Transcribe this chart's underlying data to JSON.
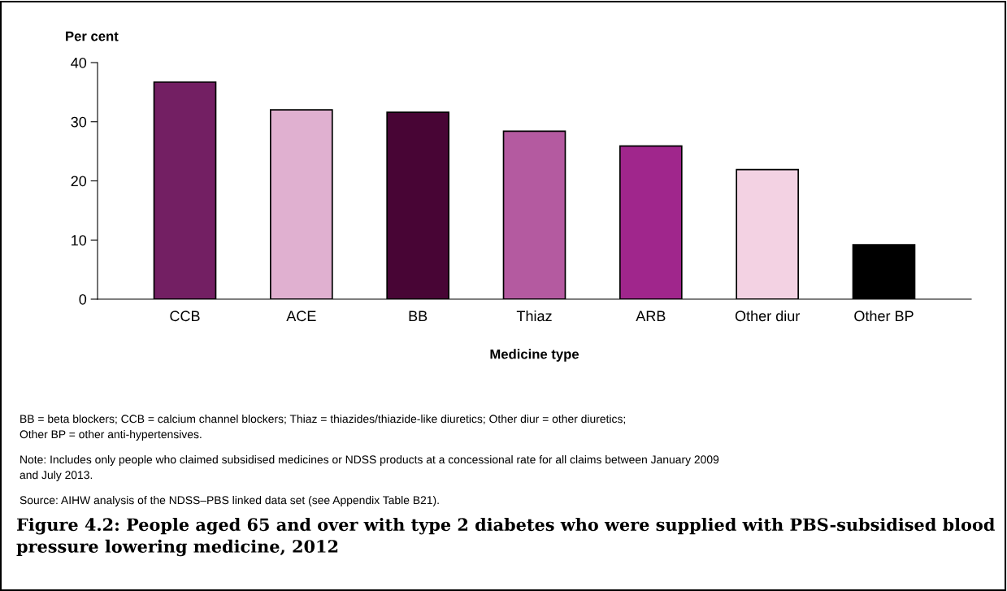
{
  "chart_data": {
    "type": "bar",
    "title": "Figure 4.2: People aged 65 and over with type 2 diabetes who were supplied with PBS-subsidised blood pressure lowering medicine, 2012",
    "ylabel": "Per cent",
    "xlabel": "Medicine type",
    "categories": [
      "CCB",
      "ACE",
      "BB",
      "Thiaz",
      "ARB",
      "Other diur",
      "Other BP"
    ],
    "values": [
      36.7,
      32.0,
      31.6,
      28.4,
      25.9,
      21.9,
      9.2
    ],
    "colors": [
      "#731f63",
      "#e0b0d0",
      "#480535",
      "#b45aa0",
      "#a0268c",
      "#f3d2e3",
      "#000000"
    ],
    "ylim": [
      0,
      40
    ],
    "yticks": [
      0,
      10,
      20,
      30,
      40
    ],
    "grid": false,
    "legend": false,
    "annotations": [
      "BB = beta blockers; CCB = calcium channel blockers; Thiaz = thiazides/thiazide-like diuretics; Other diur = other diuretics;\nOther BP = other anti-hypertensives.",
      "Note: Includes only people who claimed subsidised medicines or NDSS products at a concessional rate for all claims between January 2009\nand July 2013.",
      "Source: AIHW analysis of the NDSS–PBS linked data set (see Appendix Table B21)."
    ]
  }
}
